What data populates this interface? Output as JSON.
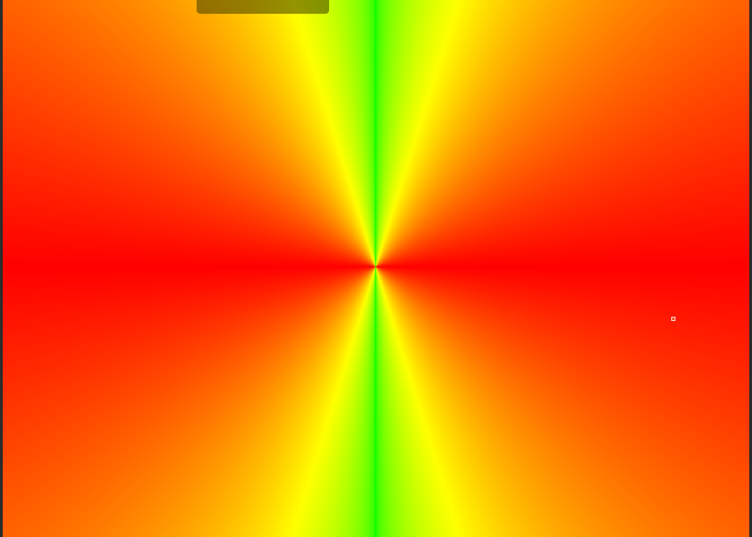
{
  "scene": {
    "background_color": "#2b2b2b",
    "palette": {
      "red": "#ff0000",
      "orange": "#ff8000",
      "yellow": "#ffff00",
      "green": "#00ff00"
    },
    "tab_pill_color": "#6b5a00",
    "cursor_marker_color": "#ffffff"
  },
  "icons": {
    "tab_pill": "collapsed-panel-handle",
    "cursor": "crosshair-point-icon"
  }
}
